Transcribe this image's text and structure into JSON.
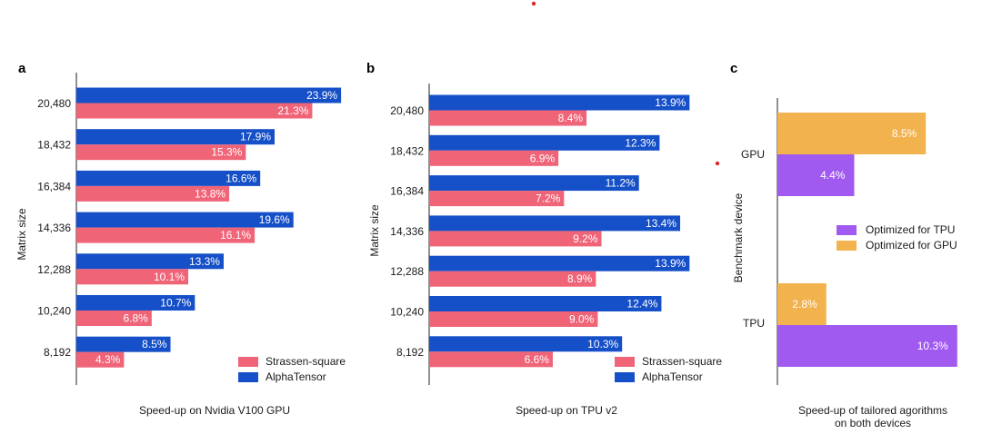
{
  "colors": {
    "alphatensor": "#1650c8",
    "strassen": "#f06478",
    "tpu_opt": "#a15af0",
    "gpu_opt": "#f2b24e",
    "marker": "#e0262a"
  },
  "chart_data": [
    {
      "type": "bar",
      "orientation": "horizontal",
      "panel": "a",
      "xlabel": "Speed-up on Nvidia V100 GPU",
      "ylabel": "Matrix size",
      "categories": [
        "20,480",
        "18,432",
        "16,384",
        "14,336",
        "12,288",
        "10,240",
        "8,192"
      ],
      "series": [
        {
          "name": "AlphaTensor",
          "values": [
            23.9,
            17.9,
            16.6,
            19.6,
            13.3,
            10.7,
            8.5
          ],
          "labels": [
            "23.9%",
            "17.9%",
            "16.6%",
            "19.6%",
            "13.3%",
            "10.7%",
            "8.5%"
          ]
        },
        {
          "name": "Strassen-square",
          "values": [
            21.3,
            15.3,
            13.8,
            16.1,
            10.1,
            6.8,
            4.3
          ],
          "labels": [
            "21.3%",
            "15.3%",
            "13.8%",
            "16.1%",
            "10.1%",
            "6.8%",
            "4.3%"
          ]
        }
      ],
      "legend": [
        "Strassen-square",
        "AlphaTensor"
      ],
      "legend_position": "bottom-right"
    },
    {
      "type": "bar",
      "orientation": "horizontal",
      "panel": "b",
      "xlabel": "Speed-up on TPU v2",
      "ylabel": "Matrix size",
      "categories": [
        "20,480",
        "18,432",
        "16,384",
        "14,336",
        "12,288",
        "10,240",
        "8,192"
      ],
      "series": [
        {
          "name": "AlphaTensor",
          "values": [
            13.9,
            12.3,
            11.2,
            13.4,
            13.9,
            12.4,
            10.3
          ],
          "labels": [
            "13.9%",
            "12.3%",
            "11.2%",
            "13.4%",
            "13.9%",
            "12.4%",
            "10.3%"
          ]
        },
        {
          "name": "Strassen-square",
          "values": [
            8.4,
            6.9,
            7.2,
            9.2,
            8.9,
            9.0,
            6.6
          ],
          "labels": [
            "8.4%",
            "6.9%",
            "7.2%",
            "9.2%",
            "8.9%",
            "9.0%",
            "6.6%"
          ]
        }
      ],
      "legend": [
        "Strassen-square",
        "AlphaTensor"
      ],
      "legend_position": "bottom-right"
    },
    {
      "type": "bar",
      "orientation": "horizontal",
      "panel": "c",
      "xlabel_lines": [
        "Speed-up of tailored agorithms",
        "on both devices"
      ],
      "ylabel": "Benchmark device",
      "categories": [
        "GPU",
        "TPU"
      ],
      "series": [
        {
          "name": "Optimized for GPU",
          "values": [
            8.5,
            2.8
          ],
          "labels": [
            "8.5%",
            "2.8%"
          ]
        },
        {
          "name": "Optimized for TPU",
          "values": [
            4.4,
            10.3
          ],
          "labels": [
            "4.4%",
            "10.3%"
          ]
        }
      ],
      "legend": [
        "Optimized for TPU",
        "Optimized for GPU"
      ],
      "legend_position": "center-right"
    }
  ]
}
